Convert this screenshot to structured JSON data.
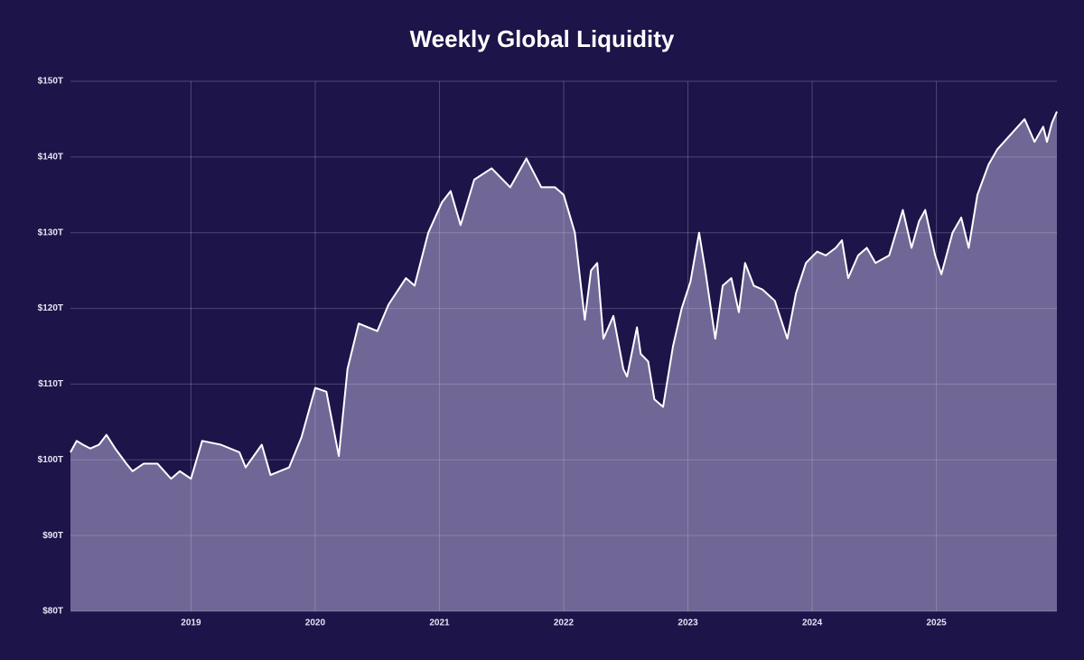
{
  "chart_data": {
    "type": "area",
    "title": "Weekly Global Liquidity",
    "series": [
      {
        "color": "#ffffff",
        "x": [
          2018.03,
          2018.08,
          2018.13,
          2018.19,
          2018.26,
          2018.32,
          2018.39,
          2018.48,
          2018.53,
          2018.62,
          2018.73,
          2018.84,
          2018.91,
          2019.0,
          2019.09,
          2019.24,
          2019.39,
          2019.44,
          2019.57,
          2019.64,
          2019.79,
          2019.89,
          2020.0,
          2020.09,
          2020.19,
          2020.26,
          2020.35,
          2020.5,
          2020.59,
          2020.73,
          2020.8,
          2020.91,
          2021.02,
          2021.09,
          2021.17,
          2021.28,
          2021.42,
          2021.57,
          2021.7,
          2021.82,
          2021.93,
          2022.0,
          2022.09,
          2022.17,
          2022.22,
          2022.27,
          2022.32,
          2022.4,
          2022.48,
          2022.51,
          2022.59,
          2022.62,
          2022.68,
          2022.73,
          2022.8,
          2022.88,
          2022.95,
          2023.02,
          2023.09,
          2023.14,
          2023.22,
          2023.28,
          2023.35,
          2023.41,
          2023.46,
          2023.53,
          2023.6,
          2023.7,
          2023.8,
          2023.87,
          2023.95,
          2024.04,
          2024.11,
          2024.19,
          2024.24,
          2024.29,
          2024.37,
          2024.44,
          2024.51,
          2024.62,
          2024.73,
          2024.8,
          2024.86,
          2024.91,
          2024.99,
          2025.04,
          2025.13,
          2025.2,
          2025.26,
          2025.33,
          2025.42,
          2025.49,
          2025.6,
          2025.71,
          2025.79,
          2025.86,
          2025.89,
          2025.93,
          2025.97
        ],
        "values": [
          101,
          102.5,
          102,
          101.5,
          102,
          103.3,
          101.5,
          99.5,
          98.5,
          99.5,
          99.5,
          97.5,
          98.5,
          97.5,
          102.5,
          102,
          101,
          99,
          102,
          98,
          99,
          103,
          109.5,
          109,
          100.5,
          112,
          118,
          117,
          120.5,
          124,
          123,
          130,
          134,
          135.5,
          131,
          137,
          138.5,
          136,
          139.8,
          136,
          136,
          135,
          130,
          118.5,
          125,
          126,
          116,
          119,
          112,
          111,
          117.5,
          114,
          113,
          108,
          107,
          115,
          120,
          123.5,
          130,
          125,
          116,
          123,
          124,
          119.5,
          126,
          123,
          122.5,
          121,
          116,
          122,
          126,
          127.5,
          127,
          128,
          129,
          124,
          127,
          128,
          126,
          127,
          133,
          128,
          131.5,
          133,
          127,
          124.5,
          130,
          132,
          128,
          135,
          139,
          141,
          143,
          145,
          142,
          144,
          142,
          144.5,
          146
        ]
      }
    ],
    "xlim": [
      2018.03,
      2025.97
    ],
    "xticks": [
      2019,
      2020,
      2021,
      2022,
      2023,
      2024,
      2025
    ],
    "ylim": [
      80,
      150
    ],
    "yticks": [
      {
        "value": 80,
        "label": "$80T"
      },
      {
        "value": 90,
        "label": "$90T"
      },
      {
        "value": 100,
        "label": "$100T"
      },
      {
        "value": 110,
        "label": "$110T"
      },
      {
        "value": 120,
        "label": "$120T"
      },
      {
        "value": 130,
        "label": "$130T"
      },
      {
        "value": 140,
        "label": "$140T"
      },
      {
        "value": 150,
        "label": "$150T"
      }
    ],
    "grid": true
  }
}
